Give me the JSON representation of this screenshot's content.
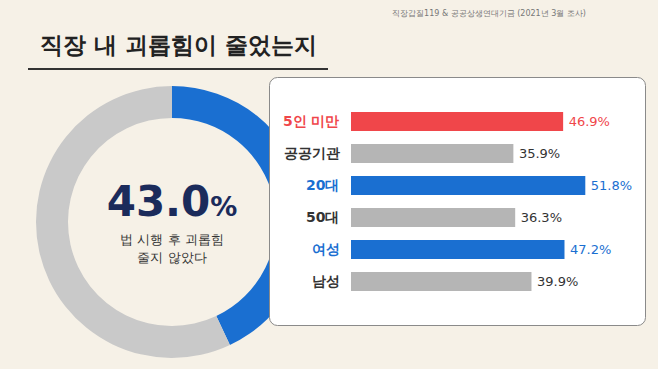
{
  "title": "직장 내 괴롭힘이 줄었는지",
  "source": "직장갑질119 & 공공상생연대기금 (2021년 3월 조사)",
  "chart_data": [
    {
      "type": "pie",
      "categories": [
        "법 시행 후 괴롭힘 줄지 않았다",
        null
      ],
      "values": [
        43.0,
        57.0
      ],
      "value_labels": [
        "43.0%",
        null
      ],
      "colors": [
        "#1a6fd1",
        "#c9c9c9"
      ],
      "data_labels": true
    },
    {
      "type": "bar",
      "orientation": "horizontal",
      "categories": [
        "5인 미만",
        "공공기관",
        "20대",
        "50대",
        "여성",
        "남성"
      ],
      "values": [
        46.9,
        35.9,
        51.8,
        36.3,
        47.2,
        39.9
      ],
      "value_labels": [
        "46.9%",
        "35.9%",
        "51.8%",
        "36.3%",
        "47.2%",
        "39.9%"
      ],
      "colors": [
        "#f0464a",
        "#b5b5b5",
        "#1a6fd1",
        "#b5b5b5",
        "#1a6fd1",
        "#b5b5b5"
      ],
      "xlim": [
        0,
        65
      ],
      "xticks": [],
      "tick_labels": "y",
      "data_labels": true
    }
  ]
}
